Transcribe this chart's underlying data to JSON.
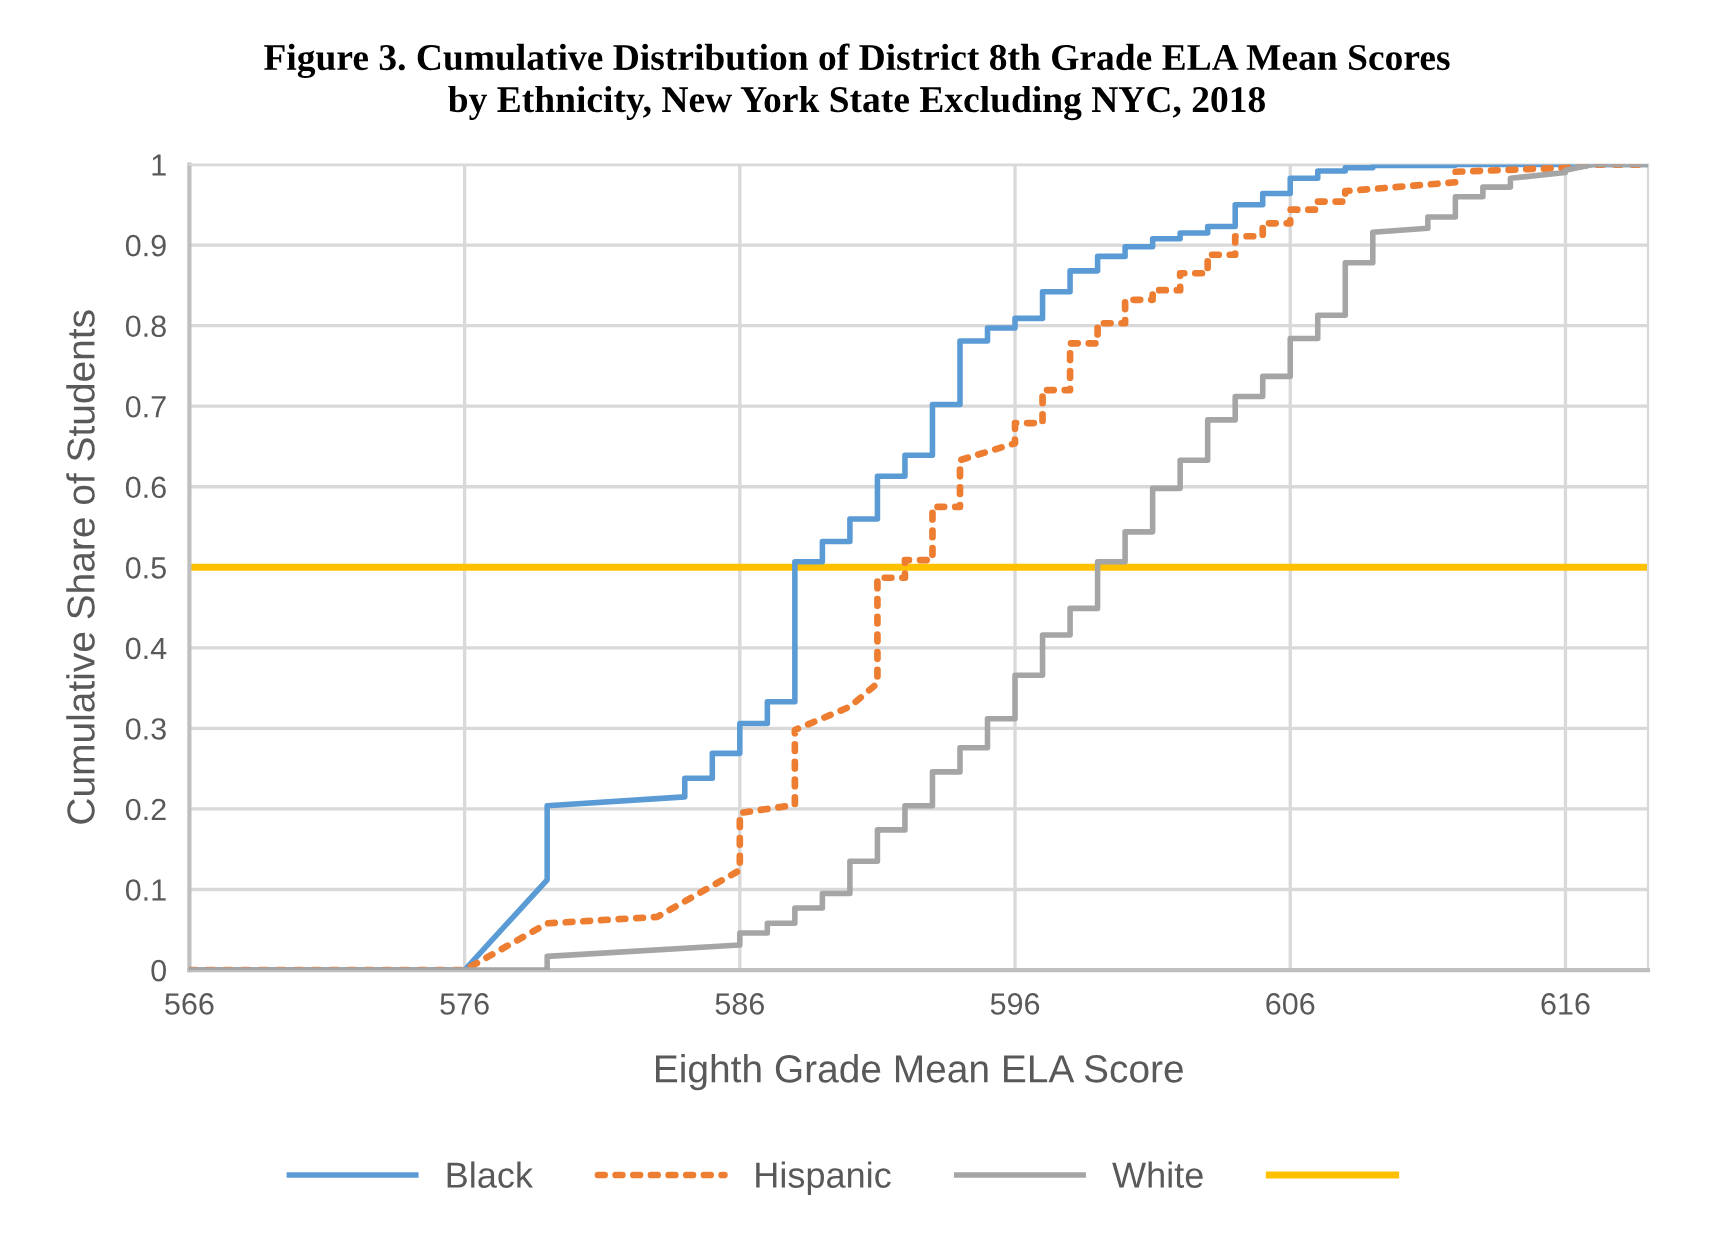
{
  "chart_data": {
    "type": "line",
    "title": "Figure 3. Cumulative Distribution of District 8th Grade ELA Mean Scores\nby Ethnicity, New York State Excluding NYC, 2018",
    "xlabel": "Eighth Grade Mean ELA Score",
    "ylabel": "Cumulative Share of Students",
    "xlim": [
      566,
      619
    ],
    "xticks": [
      566,
      576,
      586,
      596,
      606,
      616
    ],
    "ylim": [
      0,
      1
    ],
    "yticks": [
      0,
      0.1,
      0.2,
      0.3,
      0.4,
      0.5,
      0.6,
      0.7,
      0.8,
      0.9,
      1
    ],
    "grid": true,
    "legend": "bottom",
    "marker": "none",
    "series": [
      {
        "name": "Black",
        "color": "#5b9bd5",
        "line_style": "solid",
        "x": [
          566,
          576,
          579,
          579,
          584,
          584,
          585,
          585,
          586,
          586,
          587,
          587,
          588,
          588,
          589,
          589,
          590,
          590,
          591,
          591,
          592,
          592,
          593,
          593,
          594,
          594,
          595,
          595,
          596,
          596,
          597,
          597,
          598,
          598,
          599,
          599,
          600,
          600,
          601,
          601,
          602,
          602,
          603,
          603,
          604,
          604,
          605,
          605,
          606,
          606,
          607,
          607,
          608,
          608,
          609,
          609,
          612,
          612,
          619
        ],
        "values": [
          0,
          0,
          0.112,
          0.204,
          0.215,
          0.238,
          0.238,
          0.269,
          0.269,
          0.306,
          0.306,
          0.333,
          0.333,
          0.507,
          0.507,
          0.532,
          0.532,
          0.56,
          0.56,
          0.613,
          0.613,
          0.639,
          0.639,
          0.702,
          0.702,
          0.781,
          0.781,
          0.797,
          0.797,
          0.809,
          0.809,
          0.842,
          0.842,
          0.868,
          0.868,
          0.886,
          0.886,
          0.898,
          0.898,
          0.908,
          0.908,
          0.915,
          0.915,
          0.923,
          0.923,
          0.95,
          0.95,
          0.964,
          0.964,
          0.983,
          0.983,
          0.992,
          0.992,
          0.996,
          0.996,
          0.999,
          0.999,
          1,
          1
        ]
      },
      {
        "name": "Hispanic",
        "color": "#ed7d31",
        "line_style": "dotted",
        "x": [
          566,
          576,
          579,
          583,
          586,
          586,
          588,
          588,
          590,
          591,
          591,
          592,
          592,
          593,
          593,
          594,
          594,
          596,
          596,
          597,
          597,
          598,
          598,
          599,
          599,
          600,
          600,
          601,
          601,
          602,
          602,
          603,
          603,
          604,
          604,
          605,
          605,
          606,
          606,
          607,
          607,
          608,
          608,
          612,
          612,
          616,
          617,
          619
        ],
        "values": [
          0,
          0,
          0.058,
          0.066,
          0.124,
          0.195,
          0.205,
          0.298,
          0.327,
          0.356,
          0.487,
          0.487,
          0.509,
          0.509,
          0.575,
          0.575,
          0.633,
          0.654,
          0.679,
          0.679,
          0.72,
          0.72,
          0.778,
          0.778,
          0.803,
          0.803,
          0.832,
          0.832,
          0.844,
          0.844,
          0.865,
          0.865,
          0.888,
          0.888,
          0.911,
          0.911,
          0.927,
          0.927,
          0.944,
          0.944,
          0.954,
          0.954,
          0.967,
          0.978,
          0.991,
          0.996,
          1,
          1
        ]
      },
      {
        "name": "White",
        "color": "#a5a5a5",
        "line_style": "solid",
        "x": [
          566,
          579,
          579,
          586,
          586,
          587,
          587,
          588,
          588,
          589,
          589,
          590,
          590,
          591,
          591,
          592,
          592,
          593,
          593,
          594,
          594,
          595,
          595,
          596,
          596,
          597,
          597,
          598,
          598,
          599,
          599,
          600,
          600,
          601,
          601,
          602,
          602,
          603,
          603,
          604,
          604,
          605,
          605,
          606,
          606,
          607,
          607,
          608,
          608,
          609,
          609,
          611,
          611,
          612,
          612,
          613,
          613,
          614,
          614,
          616,
          616,
          617,
          619
        ],
        "values": [
          0,
          0,
          0.017,
          0.031,
          0.046,
          0.046,
          0.058,
          0.058,
          0.077,
          0.077,
          0.095,
          0.095,
          0.135,
          0.135,
          0.174,
          0.174,
          0.204,
          0.204,
          0.246,
          0.246,
          0.276,
          0.276,
          0.312,
          0.312,
          0.366,
          0.366,
          0.416,
          0.416,
          0.449,
          0.449,
          0.507,
          0.507,
          0.544,
          0.544,
          0.598,
          0.598,
          0.633,
          0.633,
          0.683,
          0.683,
          0.712,
          0.712,
          0.737,
          0.737,
          0.784,
          0.784,
          0.813,
          0.813,
          0.878,
          0.878,
          0.916,
          0.921,
          0.935,
          0.935,
          0.96,
          0.96,
          0.972,
          0.972,
          0.983,
          0.99,
          0.993,
          1,
          1
        ]
      }
    ],
    "ref_lines": [
      {
        "axis": "y",
        "value": 0.5,
        "color": "#ffc000",
        "line_style": "solid"
      }
    ]
  }
}
